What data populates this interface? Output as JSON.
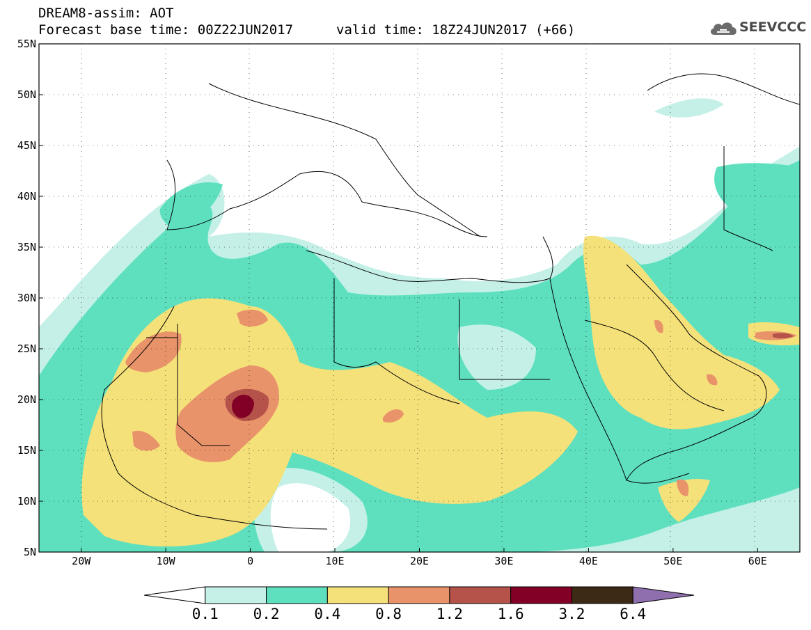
{
  "header": {
    "title": "DREAM8-assim: AOT",
    "base_time": "Forecast base time: 00Z22JUN2017",
    "valid_time": "valid time: 18Z24JUN2017 (+66)"
  },
  "logo": {
    "text": "SEEVCCC",
    "icon": "cloud-icon"
  },
  "axes": {
    "lon_ticks": [
      "20W",
      "10W",
      "0",
      "10E",
      "20E",
      "30E",
      "40E",
      "50E",
      "60E"
    ],
    "lat_ticks": [
      "55N",
      "50N",
      "45N",
      "40N",
      "35N",
      "30N",
      "25N",
      "20N",
      "15N",
      "10N",
      "5N"
    ],
    "lon_range": [
      -25,
      65
    ],
    "lat_range": [
      5,
      55
    ]
  },
  "colorbar": {
    "labels": [
      "0.1",
      "0.2",
      "0.4",
      "0.8",
      "1.2",
      "1.6",
      "3.2",
      "6.4"
    ],
    "colors": [
      "#ffffff",
      "#c4f0e8",
      "#5ee0be",
      "#f5e17a",
      "#e8936a",
      "#b5524a",
      "#820026",
      "#3d2a14",
      "#8f6fae"
    ]
  }
}
